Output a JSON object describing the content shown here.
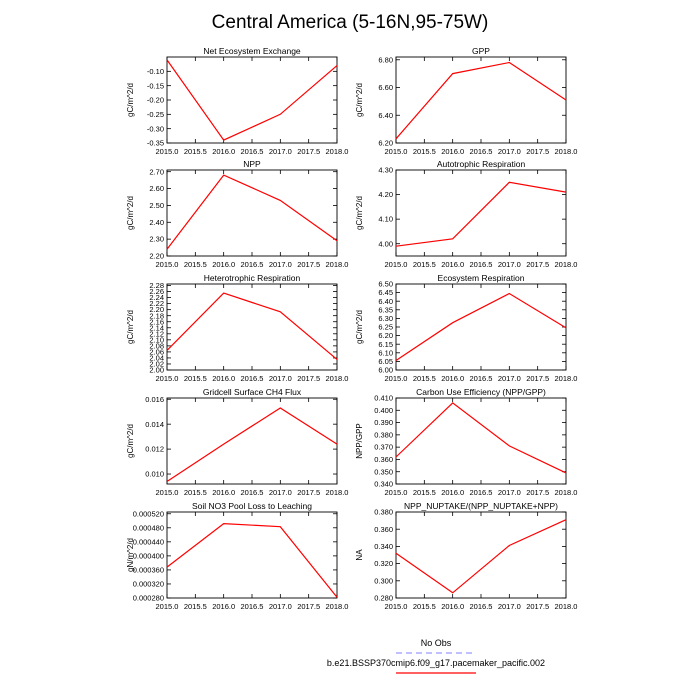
{
  "figure_title": "Central America (5-16N,95-75W)",
  "legend": {
    "obs_label": "No Obs",
    "obs_color": "#8080ff",
    "model_label": "b.e21.BSSP370cmip6.f09_g17.pacemaker_pacific.002",
    "model_color": "#ff0000"
  },
  "chart_data": [
    {
      "type": "line",
      "title": "Net Ecosystem Exchange",
      "ylabel": "gC/m^2/d",
      "x": [
        2015,
        2016,
        2017,
        2018
      ],
      "xlim": [
        2015,
        2018
      ],
      "xticks": [
        "2015.0",
        "2015.5",
        "2016.0",
        "2016.5",
        "2017.0",
        "2017.5",
        "2018.0"
      ],
      "ylim": [
        -0.35,
        -0.05
      ],
      "yticks": [
        "-0.35",
        "-0.30",
        "-0.25",
        "-0.20",
        "-0.15",
        "-0.10"
      ],
      "series": [
        {
          "values": [
            -0.06,
            -0.34,
            -0.25,
            -0.08
          ],
          "color": "#ff0000"
        }
      ]
    },
    {
      "type": "line",
      "title": "GPP",
      "ylabel": "gC/m^2/d",
      "x": [
        2015,
        2016,
        2017,
        2018
      ],
      "xlim": [
        2015,
        2018
      ],
      "xticks": [
        "2015.0",
        "2015.5",
        "2016.0",
        "2016.5",
        "2017.0",
        "2017.5",
        "2018.0"
      ],
      "ylim": [
        6.2,
        6.82
      ],
      "yticks": [
        "6.20",
        "6.40",
        "6.60",
        "6.80"
      ],
      "series": [
        {
          "values": [
            6.23,
            6.7,
            6.78,
            6.51
          ],
          "color": "#ff0000"
        }
      ]
    },
    {
      "type": "line",
      "title": "NPP",
      "ylabel": "gC/m^2/d",
      "x": [
        2015,
        2016,
        2017,
        2018
      ],
      "xlim": [
        2015,
        2018
      ],
      "xticks": [
        "2015.0",
        "2015.5",
        "2016.0",
        "2016.5",
        "2017.0",
        "2017.5",
        "2018.0"
      ],
      "ylim": [
        2.2,
        2.71
      ],
      "yticks": [
        "2.20",
        "2.30",
        "2.40",
        "2.50",
        "2.60",
        "2.70"
      ],
      "series": [
        {
          "values": [
            2.24,
            2.68,
            2.53,
            2.29
          ],
          "color": "#ff0000"
        }
      ]
    },
    {
      "type": "line",
      "title": "Autotrophic Respiration",
      "ylabel": "gC/m^2/d",
      "x": [
        2015,
        2016,
        2017,
        2018
      ],
      "xlim": [
        2015,
        2018
      ],
      "xticks": [
        "2015.0",
        "2015.5",
        "2016.0",
        "2016.5",
        "2017.0",
        "2017.5",
        "2018.0"
      ],
      "ylim": [
        3.95,
        4.3
      ],
      "yticks": [
        "4.00",
        "4.10",
        "4.20",
        "4.30"
      ],
      "series": [
        {
          "values": [
            3.99,
            4.02,
            4.25,
            4.21
          ],
          "color": "#ff0000"
        }
      ]
    },
    {
      "type": "line",
      "title": "Heterotrophic Respiration",
      "ylabel": "gC/m^2/d",
      "x": [
        2015,
        2016,
        2017,
        2018
      ],
      "xlim": [
        2015,
        2018
      ],
      "xticks": [
        "2015.0",
        "2015.5",
        "2016.0",
        "2016.5",
        "2017.0",
        "2017.5",
        "2018.0"
      ],
      "ylim": [
        2.0,
        2.285
      ],
      "yticks": [
        "2.00",
        "2.02",
        "2.04",
        "2.06",
        "2.08",
        "2.10",
        "2.12",
        "2.14",
        "2.16",
        "2.18",
        "2.20",
        "2.22",
        "2.24",
        "2.26",
        "2.28"
      ],
      "series": [
        {
          "values": [
            2.065,
            2.255,
            2.193,
            2.035
          ],
          "color": "#ff0000"
        }
      ]
    },
    {
      "type": "line",
      "title": "Ecosystem Respiration",
      "ylabel": "gC/m^2/d",
      "x": [
        2015,
        2016,
        2017,
        2018
      ],
      "xlim": [
        2015,
        2018
      ],
      "xticks": [
        "2015.0",
        "2015.5",
        "2016.0",
        "2016.5",
        "2017.0",
        "2017.5",
        "2018.0"
      ],
      "ylim": [
        6.0,
        6.5
      ],
      "yticks": [
        "6.00",
        "6.05",
        "6.10",
        "6.15",
        "6.20",
        "6.25",
        "6.30",
        "6.35",
        "6.40",
        "6.45",
        "6.50"
      ],
      "series": [
        {
          "values": [
            6.055,
            6.275,
            6.445,
            6.245
          ],
          "color": "#ff0000"
        }
      ]
    },
    {
      "type": "line",
      "title": "Gridcell Surface CH4 Flux",
      "ylabel": "gC/m^2/d",
      "x": [
        2015,
        2016,
        2017,
        2018
      ],
      "xlim": [
        2015,
        2018
      ],
      "xticks": [
        "2015.0",
        "2015.5",
        "2016.0",
        "2016.5",
        "2017.0",
        "2017.5",
        "2018.0"
      ],
      "ylim": [
        0.0092,
        0.0161
      ],
      "yticks": [
        "0.010",
        "0.012",
        "0.014",
        "0.016"
      ],
      "series": [
        {
          "values": [
            0.0094,
            0.0124,
            0.0153,
            0.0124
          ],
          "color": "#ff0000"
        }
      ]
    },
    {
      "type": "line",
      "title": "Carbon Use Efficiency (NPP/GPP)",
      "ylabel": "NPP/GPP",
      "x": [
        2015,
        2016,
        2017,
        2018
      ],
      "xlim": [
        2015,
        2018
      ],
      "xticks": [
        "2015.0",
        "2015.5",
        "2016.0",
        "2016.5",
        "2017.0",
        "2017.5",
        "2018.0"
      ],
      "ylim": [
        0.34,
        0.41
      ],
      "yticks": [
        "0.340",
        "0.350",
        "0.360",
        "0.370",
        "0.380",
        "0.390",
        "0.400",
        "0.410"
      ],
      "series": [
        {
          "values": [
            0.362,
            0.406,
            0.371,
            0.349
          ],
          "color": "#ff0000"
        }
      ]
    },
    {
      "type": "line",
      "title": "Soil NO3 Pool Loss to Leaching",
      "ylabel": "gN/m^2/d",
      "x": [
        2015,
        2016,
        2017,
        2018
      ],
      "xlim": [
        2015,
        2018
      ],
      "xticks": [
        "2015.0",
        "2015.5",
        "2016.0",
        "2016.5",
        "2017.0",
        "2017.5",
        "2018.0"
      ],
      "ylim": [
        0.00028,
        0.000525
      ],
      "yticks": [
        "0.000280",
        "0.000320",
        "0.000360",
        "0.000400",
        "0.000440",
        "0.000480",
        "0.000520"
      ],
      "series": [
        {
          "values": [
            0.000368,
            0.000492,
            0.000483,
            0.000282
          ],
          "color": "#ff0000"
        }
      ]
    },
    {
      "type": "line",
      "title": "NPP_NUPTAKE/(NPP_NUPTAKE+NPP)",
      "ylabel": "NA",
      "x": [
        2015,
        2016,
        2017,
        2018
      ],
      "xlim": [
        2015,
        2018
      ],
      "xticks": [
        "2015.0",
        "2015.5",
        "2016.0",
        "2016.5",
        "2017.0",
        "2017.5",
        "2018.0"
      ],
      "ylim": [
        0.28,
        0.38
      ],
      "yticks": [
        "0.280",
        "0.300",
        "0.320",
        "0.340",
        "0.360",
        "0.380"
      ],
      "series": [
        {
          "values": [
            0.332,
            0.286,
            0.341,
            0.371
          ],
          "color": "#ff0000"
        }
      ]
    }
  ]
}
